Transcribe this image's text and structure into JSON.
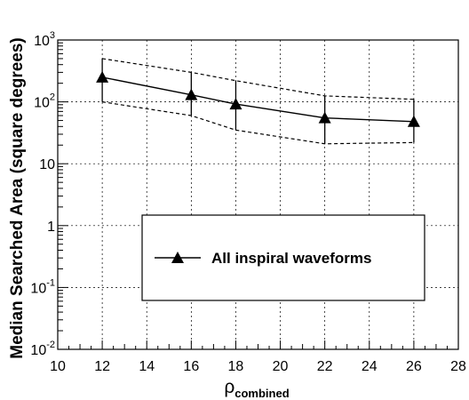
{
  "chart_data": {
    "type": "line",
    "ylabel": "Median Searched Area (square degrees)",
    "xlabel_main": "ρ",
    "xlabel_sub": "combined",
    "xlim": [
      10,
      28
    ],
    "ylim": [
      0.01,
      1000
    ],
    "yscale": "log",
    "grid": true,
    "x_ticks": [
      10,
      12,
      14,
      16,
      18,
      20,
      22,
      24,
      26,
      28
    ],
    "x_tick_labels": [
      "10",
      "12",
      "14",
      "16",
      "18",
      "20",
      "22",
      "24",
      "26",
      "28"
    ],
    "y_ticks": [
      {
        "value": 0.01,
        "base": "10",
        "exp": "-2"
      },
      {
        "value": 0.1,
        "base": "10",
        "exp": "-1"
      },
      {
        "value": 1,
        "base": "1",
        "exp": ""
      },
      {
        "value": 10,
        "base": "10",
        "exp": ""
      },
      {
        "value": 100,
        "base": "10",
        "exp": "2"
      },
      {
        "value": 1000,
        "base": "10",
        "exp": "3"
      }
    ],
    "legend_placement": "center-right",
    "series": [
      {
        "name": "All inspiral waveforms",
        "marker": "triangle",
        "x": [
          12,
          16,
          18,
          22,
          26
        ],
        "y": [
          250,
          130,
          92,
          55,
          48
        ],
        "err_lo": [
          100,
          60,
          35,
          21,
          22
        ],
        "err_hi": [
          500,
          300,
          220,
          125,
          110
        ]
      }
    ]
  }
}
